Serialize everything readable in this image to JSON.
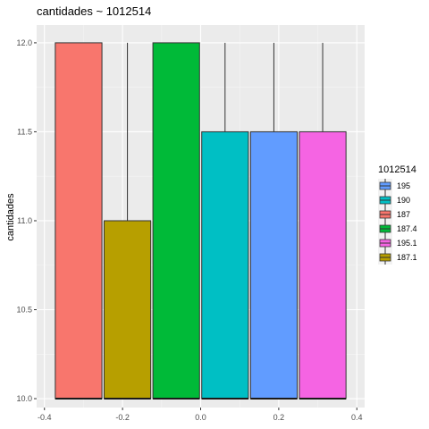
{
  "chart_data": {
    "type": "bar",
    "title": "cantidades ~ 1012514",
    "xlabel": "",
    "ylabel": "cantidades",
    "xlim": [
      -0.4,
      0.4
    ],
    "ylim": [
      10.0,
      12.0
    ],
    "x_ticks": [
      "-0.4",
      "-0.2",
      "0.0",
      "0.2",
      "0.4"
    ],
    "y_ticks": [
      "10.0",
      "10.5",
      "11.0",
      "11.5",
      "12.0"
    ],
    "grid": true,
    "legend_position": "right",
    "legend": {
      "title": "1012514",
      "entries": [
        {
          "label": "195",
          "color": "#619CFF"
        },
        {
          "label": "190",
          "color": "#00BFC4"
        },
        {
          "label": "187",
          "color": "#F8766D"
        },
        {
          "label": "187.4",
          "color": "#00BA38"
        },
        {
          "label": "195.1",
          "color": "#F564E3"
        },
        {
          "label": "187.1",
          "color": "#B79F00"
        }
      ]
    },
    "series": [
      {
        "name": "187",
        "x_range": [
          -0.375,
          -0.25
        ],
        "y_range": [
          10.0,
          12.0
        ],
        "whisker_max": 12.0,
        "color": "#F8766D"
      },
      {
        "name": "187.1",
        "x_range": [
          -0.25,
          -0.125
        ],
        "y_range": [
          10.0,
          11.0
        ],
        "whisker_max": 12.0,
        "color": "#B79F00"
      },
      {
        "name": "187.4",
        "x_range": [
          -0.125,
          0.0
        ],
        "y_range": [
          10.0,
          12.0
        ],
        "whisker_max": 12.0,
        "color": "#00BA38"
      },
      {
        "name": "190",
        "x_range": [
          0.0,
          0.125
        ],
        "y_range": [
          10.0,
          11.5
        ],
        "whisker_max": 12.0,
        "color": "#00BFC4"
      },
      {
        "name": "195",
        "x_range": [
          0.125,
          0.25
        ],
        "y_range": [
          10.0,
          11.5
        ],
        "whisker_max": 12.0,
        "color": "#619CFF"
      },
      {
        "name": "195.1",
        "x_range": [
          0.25,
          0.375
        ],
        "y_range": [
          10.0,
          11.5
        ],
        "whisker_max": 12.0,
        "color": "#F564E3"
      }
    ]
  }
}
